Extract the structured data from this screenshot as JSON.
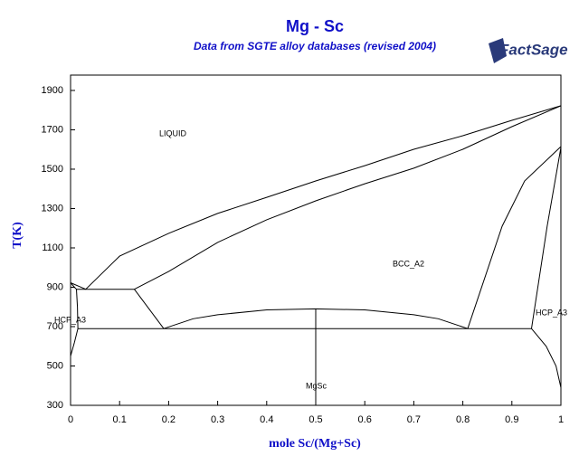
{
  "chart_data": {
    "type": "line",
    "title": "Mg - Sc",
    "subtitle": "Data from SGTE alloy databases (revised 2004)",
    "logo": "FactSage",
    "x_label": "mole Sc/(Mg+Sc)",
    "y_label": "T(K)",
    "xlim": [
      0,
      1
    ],
    "xticks": [
      0,
      0.1,
      0.2,
      0.3,
      0.4,
      0.5,
      0.6,
      0.7,
      0.8,
      0.9,
      1
    ],
    "ylim": [
      300,
      1978
    ],
    "yticks": [
      300,
      500,
      700,
      900,
      1100,
      1300,
      1500,
      1700,
      1900
    ],
    "series": [
      {
        "color": "#000000",
        "x": [
          0,
          0.031,
          0.1,
          0.2,
          0.3,
          0.4,
          0.5,
          0.6,
          0.7,
          0.8,
          0.9,
          1
        ],
        "values": [
          923,
          890,
          1058,
          1174,
          1275,
          1357,
          1440,
          1518,
          1601,
          1670,
          1748,
          1822
        ]
      },
      {
        "color": "#000000",
        "x": [
          0.13,
          0.2,
          0.3,
          0.4,
          0.5,
          0.6,
          0.7,
          0.8,
          0.9,
          1
        ],
        "values": [
          890,
          980,
          1128,
          1243,
          1339,
          1426,
          1505,
          1601,
          1716,
          1822
        ]
      },
      {
        "color": "#000000",
        "x": [
          0.012,
          0.13
        ],
        "values": [
          890,
          890
        ]
      },
      {
        "color": "#000000",
        "x": [
          0,
          0.008,
          0.012,
          0.014,
          0.015,
          0.008,
          0
        ],
        "values": [
          923,
          900,
          890,
          800,
          690,
          620,
          550
        ]
      },
      {
        "color": "#000000",
        "x": [
          0.13,
          0.19
        ],
        "values": [
          890,
          690
        ]
      },
      {
        "color": "#000000",
        "x": [
          0.015,
          0.94
        ],
        "values": [
          690,
          690
        ]
      },
      {
        "color": "#000000",
        "x": [
          0.19,
          0.25,
          0.3,
          0.4,
          0.5,
          0.6,
          0.7,
          0.75,
          0.81
        ],
        "values": [
          690,
          740,
          760,
          785,
          790,
          785,
          760,
          740,
          690
        ]
      },
      {
        "color": "#000000",
        "x": [
          0.5,
          0.5
        ],
        "values": [
          300,
          790
        ]
      },
      {
        "color": "#000000",
        "x": [
          0.81,
          0.88,
          0.926,
          1
        ],
        "values": [
          690,
          1210,
          1440,
          1615
        ]
      },
      {
        "color": "#000000",
        "x": [
          0.94,
          0.972,
          1
        ],
        "values": [
          690,
          1210,
          1610
        ]
      },
      {
        "color": "#000000",
        "x": [
          0.94,
          0.97,
          0.99,
          1
        ],
        "values": [
          690,
          600,
          500,
          390
        ]
      }
    ],
    "annotations": [
      "LIQUID",
      "BCC_A2",
      "HCP_A3",
      "HCP_A3",
      "MgSc"
    ]
  }
}
